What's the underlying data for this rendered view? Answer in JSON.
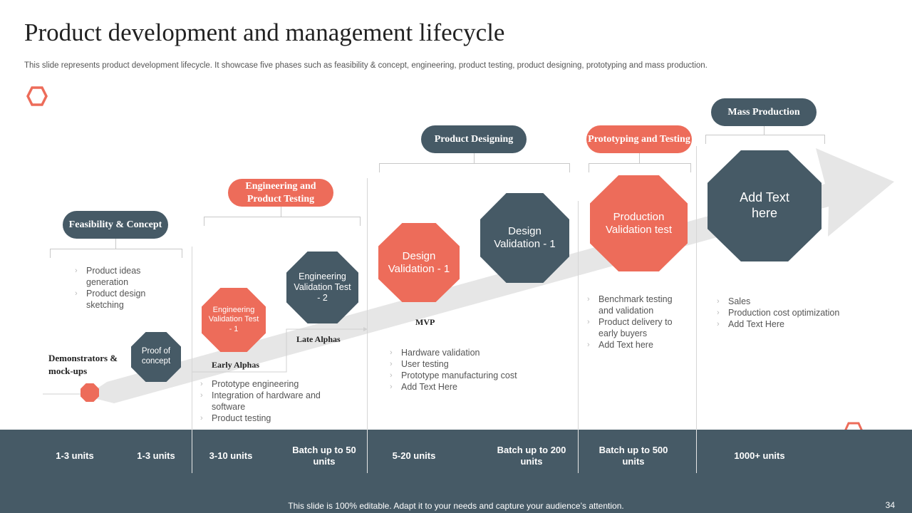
{
  "title": "Product development and management lifecycle",
  "subtitle": "This slide represents product development lifecycle. It showcase five phases such as feasibility & concept, engineering, product testing, product designing, prototyping and mass production.",
  "phases": [
    {
      "label": "Feasibility & Concept"
    },
    {
      "label": "Engineering and Product Testing"
    },
    {
      "label": "Product Designing"
    },
    {
      "label": "Prototyping and Testing"
    },
    {
      "label": "Mass Production"
    }
  ],
  "milestones": [
    {
      "label": "Proof of concept"
    },
    {
      "label": "Engineering Validation Test - 1"
    },
    {
      "label": "Engineering Validation Test - 2"
    },
    {
      "label": "Design Validation - 1"
    },
    {
      "label": "Design Validation - 1"
    },
    {
      "label": "Production Validation test"
    },
    {
      "label": "Add Text here"
    }
  ],
  "stage_labels": {
    "demonstrators": "Demonstrators & mock-ups",
    "early_alphas": "Early Alphas",
    "late_alphas": "Late Alphas",
    "mvp": "MVP"
  },
  "bullets": {
    "feasibility": [
      "Product ideas generation",
      "Product design sketching"
    ],
    "engineering": [
      "Prototype engineering",
      "Integration of hardware and software",
      "Product testing"
    ],
    "designing": [
      "Hardware validation",
      "User testing",
      "Prototype manufacturing cost",
      "Add Text Here"
    ],
    "prototyping": [
      "Benchmark testing and validation",
      "Product delivery to early buyers",
      "Add Text here"
    ],
    "mass": [
      "Sales",
      "Production cost optimization",
      "Add Text Here"
    ]
  },
  "units": [
    {
      "label": "1-3 units"
    },
    {
      "label": "1-3 units"
    },
    {
      "label": "3-10 units"
    },
    {
      "label": "Batch up to 50 units"
    },
    {
      "label": "5-20 units"
    },
    {
      "label": "Batch up to 200 units"
    },
    {
      "label": "Batch up to 500 units"
    },
    {
      "label": "1000+ units"
    }
  ],
  "footer": "This slide is 100% editable. Adapt it to your needs and capture your audience’s attention.",
  "page_number": "34",
  "colors": {
    "dark": "#465a66",
    "coral": "#ed6c5a",
    "arrow": "#e6e6e6"
  }
}
